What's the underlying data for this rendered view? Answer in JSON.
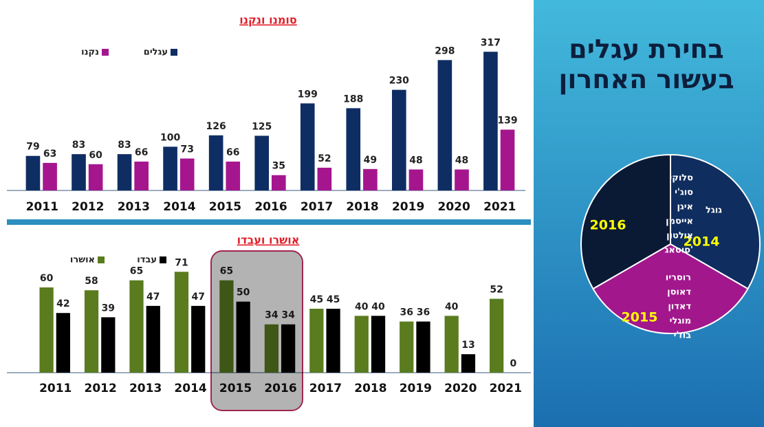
{
  "slide": {
    "title_lines": [
      "בחירת עגלים",
      "בעשור האחרון"
    ]
  },
  "chart_data": [
    {
      "type": "bar",
      "title": "סומנו ונקנו",
      "categories": [
        "2011",
        "2012",
        "2013",
        "2014",
        "2015",
        "2016",
        "2017",
        "2018",
        "2019",
        "2020",
        "2021"
      ],
      "series": [
        {
          "name": "עגלים",
          "color": "#0e2d63",
          "values": [
            79,
            83,
            83,
            100,
            126,
            125,
            199,
            188,
            230,
            298,
            317
          ]
        },
        {
          "name": "נקנו",
          "color": "#a5168e",
          "values": [
            63,
            60,
            66,
            73,
            66,
            35,
            52,
            49,
            48,
            48,
            139
          ]
        }
      ],
      "ylim": [
        0,
        330
      ]
    },
    {
      "type": "bar",
      "title": "אושרו ועבדו",
      "categories": [
        "2011",
        "2012",
        "2013",
        "2014",
        "2015",
        "2016",
        "2017",
        "2018",
        "2019",
        "2020",
        "2021"
      ],
      "series": [
        {
          "name": "אושרו",
          "color": "#5a7c1f",
          "values": [
            60,
            58,
            65,
            71,
            65,
            34,
            45,
            40,
            36,
            40,
            52
          ]
        },
        {
          "name": "עבדו",
          "color": "#000000",
          "values": [
            42,
            39,
            47,
            47,
            50,
            34,
            45,
            40,
            36,
            13,
            0
          ]
        }
      ],
      "ylim": [
        0,
        75
      ]
    },
    {
      "type": "pie",
      "categories": [
        "2014",
        "2015",
        "2016"
      ],
      "names": [
        [
          "גוגל"
        ],
        [
          "רוסריו",
          "דאוסן",
          "דאדון",
          "מוגלי",
          "בוז'י"
        ],
        [
          "סלוקי",
          "סוג'י",
          "איגן",
          "אייסמן",
          "אילטון",
          "סוטאג'"
        ]
      ],
      "values": [
        1,
        1,
        1
      ],
      "colors": [
        "#0f2d5e",
        "#a2178c",
        "#0b1a34"
      ]
    }
  ]
}
